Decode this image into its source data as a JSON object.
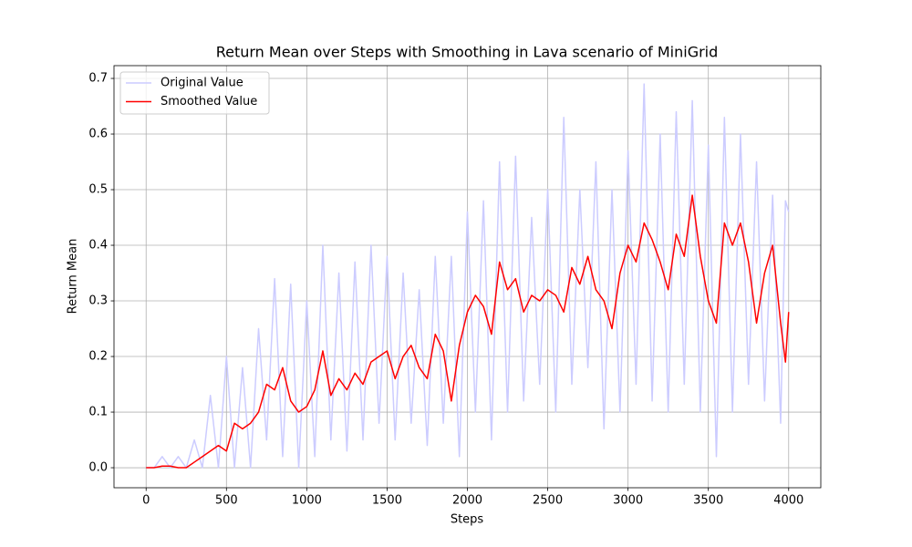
{
  "chart_data": {
    "type": "line",
    "title": "Return Mean over Steps with Smoothing in Lava scenario of MiniGrid",
    "xlabel": "Steps",
    "ylabel": "Return Mean",
    "x": [
      0,
      50,
      100,
      150,
      200,
      250,
      300,
      350,
      400,
      450,
      500,
      550,
      600,
      650,
      700,
      750,
      800,
      850,
      900,
      950,
      1000,
      1050,
      1100,
      1150,
      1200,
      1250,
      1300,
      1350,
      1400,
      1450,
      1500,
      1550,
      1600,
      1650,
      1700,
      1750,
      1800,
      1850,
      1900,
      1950,
      2000,
      2050,
      2100,
      2150,
      2200,
      2250,
      2300,
      2350,
      2400,
      2450,
      2500,
      2550,
      2600,
      2650,
      2700,
      2750,
      2800,
      2850,
      2900,
      2950,
      3000,
      3050,
      3100,
      3150,
      3200,
      3250,
      3300,
      3350,
      3400,
      3450,
      3500,
      3550,
      3600,
      3650,
      3700,
      3750,
      3800,
      3850,
      3900,
      3950,
      3980,
      4000
    ],
    "series": [
      {
        "name": "Original Value",
        "color": "#ccccff",
        "values": [
          0,
          0,
          0.02,
          0,
          0.02,
          0,
          0.05,
          0,
          0.13,
          0,
          0.2,
          0,
          0.18,
          0,
          0.25,
          0.05,
          0.34,
          0.02,
          0.33,
          0,
          0.3,
          0.02,
          0.4,
          0.05,
          0.35,
          0.03,
          0.37,
          0.05,
          0.4,
          0.08,
          0.38,
          0.05,
          0.35,
          0.08,
          0.32,
          0.04,
          0.38,
          0.08,
          0.38,
          0.02,
          0.46,
          0.1,
          0.48,
          0.05,
          0.55,
          0.1,
          0.56,
          0.12,
          0.45,
          0.15,
          0.5,
          0.1,
          0.63,
          0.15,
          0.5,
          0.18,
          0.55,
          0.07,
          0.5,
          0.1,
          0.57,
          0.15,
          0.69,
          0.12,
          0.6,
          0.1,
          0.64,
          0.15,
          0.66,
          0.1,
          0.58,
          0.02,
          0.63,
          0.1,
          0.6,
          0.15,
          0.55,
          0.12,
          0.49,
          0.08,
          0.48,
          0.46
        ]
      },
      {
        "name": "Smoothed Value",
        "color": "#ff0000",
        "values": [
          0,
          0,
          0.003,
          0.003,
          0,
          0,
          0.01,
          0.02,
          0.03,
          0.04,
          0.03,
          0.08,
          0.07,
          0.08,
          0.1,
          0.15,
          0.14,
          0.18,
          0.12,
          0.1,
          0.11,
          0.14,
          0.21,
          0.13,
          0.16,
          0.14,
          0.17,
          0.15,
          0.19,
          0.2,
          0.21,
          0.16,
          0.2,
          0.22,
          0.18,
          0.16,
          0.24,
          0.21,
          0.12,
          0.22,
          0.28,
          0.31,
          0.29,
          0.24,
          0.37,
          0.32,
          0.34,
          0.28,
          0.31,
          0.3,
          0.32,
          0.31,
          0.28,
          0.36,
          0.33,
          0.38,
          0.32,
          0.3,
          0.25,
          0.35,
          0.4,
          0.37,
          0.44,
          0.41,
          0.37,
          0.32,
          0.42,
          0.38,
          0.49,
          0.38,
          0.3,
          0.26,
          0.44,
          0.4,
          0.44,
          0.37,
          0.26,
          0.35,
          0.4,
          0.26,
          0.19,
          0.28
        ]
      }
    ],
    "xlim": [
      -200,
      4200
    ],
    "ylim": [
      -0.036,
      0.723
    ],
    "xticks": [
      0,
      500,
      1000,
      1500,
      2000,
      2500,
      3000,
      3500,
      4000
    ],
    "yticks": [
      {
        "value": 0,
        "label": "0.0"
      },
      0.1,
      0.2,
      0.3,
      0.4,
      0.5,
      0.6,
      0.7
    ],
    "grid": true,
    "legend": "upper left"
  }
}
